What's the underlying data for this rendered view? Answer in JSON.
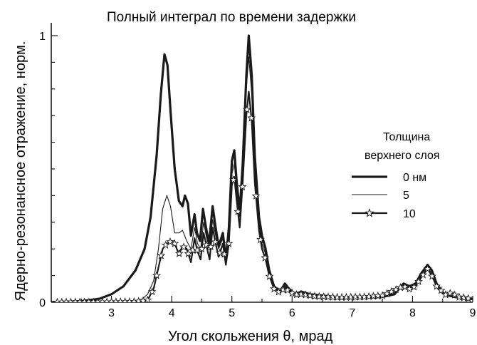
{
  "chart_data": {
    "type": "line",
    "title": "Полный интеграл по времени задержки",
    "xlabel": "Угол скольжения  θ,  мрад",
    "ylabel": "Ядерно-резонансное отражение,  норм.",
    "xlim": [
      2.0,
      9.0
    ],
    "ylim": [
      0.0,
      1.0
    ],
    "x_ticks": [
      "3",
      "4",
      "5",
      "6",
      "7",
      "8",
      "9"
    ],
    "y_ticks": [
      "0",
      "1"
    ],
    "grid": false,
    "legend": {
      "title_line1": "Толщина",
      "title_line2": "верхнего слоя",
      "placement": "right"
    },
    "series": [
      {
        "name": "0 нм",
        "style": "thick",
        "points": [
          [
            2.0,
            0.0
          ],
          [
            2.5,
            0.004
          ],
          [
            2.8,
            0.013
          ],
          [
            3.0,
            0.03
          ],
          [
            3.2,
            0.06
          ],
          [
            3.4,
            0.12
          ],
          [
            3.55,
            0.2
          ],
          [
            3.65,
            0.32
          ],
          [
            3.75,
            0.55
          ],
          [
            3.82,
            0.78
          ],
          [
            3.88,
            0.93
          ],
          [
            3.93,
            0.89
          ],
          [
            3.98,
            0.72
          ],
          [
            4.05,
            0.5
          ],
          [
            4.12,
            0.38
          ],
          [
            4.18,
            0.36
          ],
          [
            4.22,
            0.4
          ],
          [
            4.27,
            0.37
          ],
          [
            4.32,
            0.25
          ],
          [
            4.38,
            0.33
          ],
          [
            4.42,
            0.26
          ],
          [
            4.47,
            0.23
          ],
          [
            4.52,
            0.35
          ],
          [
            4.57,
            0.28
          ],
          [
            4.62,
            0.22
          ],
          [
            4.68,
            0.36
          ],
          [
            4.73,
            0.28
          ],
          [
            4.78,
            0.21
          ],
          [
            4.85,
            0.26
          ],
          [
            4.9,
            0.16
          ],
          [
            4.95,
            0.28
          ],
          [
            5.0,
            0.53
          ],
          [
            5.04,
            0.57
          ],
          [
            5.08,
            0.45
          ],
          [
            5.13,
            0.34
          ],
          [
            5.18,
            0.52
          ],
          [
            5.24,
            0.85
          ],
          [
            5.28,
            1.0
          ],
          [
            5.33,
            0.85
          ],
          [
            5.38,
            0.55
          ],
          [
            5.45,
            0.32
          ],
          [
            5.5,
            0.25
          ],
          [
            5.56,
            0.2
          ],
          [
            5.62,
            0.12
          ],
          [
            5.7,
            0.06
          ],
          [
            5.8,
            0.04
          ],
          [
            5.88,
            0.07
          ],
          [
            5.95,
            0.05
          ],
          [
            6.05,
            0.03
          ],
          [
            6.15,
            0.04
          ],
          [
            6.3,
            0.03
          ],
          [
            6.5,
            0.025
          ],
          [
            6.7,
            0.02
          ],
          [
            6.9,
            0.018
          ],
          [
            7.1,
            0.02
          ],
          [
            7.3,
            0.018
          ],
          [
            7.5,
            0.02
          ],
          [
            7.7,
            0.03
          ],
          [
            7.85,
            0.07
          ],
          [
            7.95,
            0.06
          ],
          [
            8.05,
            0.07
          ],
          [
            8.15,
            0.11
          ],
          [
            8.25,
            0.14
          ],
          [
            8.32,
            0.12
          ],
          [
            8.4,
            0.07
          ],
          [
            8.5,
            0.035
          ],
          [
            8.6,
            0.025
          ],
          [
            8.7,
            0.02
          ],
          [
            8.85,
            0.015
          ],
          [
            9.0,
            0.012
          ]
        ]
      },
      {
        "name": "5",
        "style": "thin",
        "points": [
          [
            2.0,
            0.0
          ],
          [
            3.3,
            0.002
          ],
          [
            3.5,
            0.01
          ],
          [
            3.6,
            0.03
          ],
          [
            3.7,
            0.08
          ],
          [
            3.78,
            0.2
          ],
          [
            3.85,
            0.35
          ],
          [
            3.92,
            0.4
          ],
          [
            3.98,
            0.36
          ],
          [
            4.05,
            0.26
          ],
          [
            4.12,
            0.26
          ],
          [
            4.18,
            0.27
          ],
          [
            4.25,
            0.23
          ],
          [
            4.32,
            0.2
          ],
          [
            4.38,
            0.28
          ],
          [
            4.43,
            0.22
          ],
          [
            4.48,
            0.2
          ],
          [
            4.53,
            0.3
          ],
          [
            4.58,
            0.24
          ],
          [
            4.63,
            0.2
          ],
          [
            4.68,
            0.31
          ],
          [
            4.73,
            0.25
          ],
          [
            4.78,
            0.2
          ],
          [
            4.85,
            0.24
          ],
          [
            4.9,
            0.16
          ],
          [
            4.95,
            0.25
          ],
          [
            5.0,
            0.48
          ],
          [
            5.04,
            0.52
          ],
          [
            5.08,
            0.42
          ],
          [
            5.13,
            0.32
          ],
          [
            5.18,
            0.5
          ],
          [
            5.24,
            0.8
          ],
          [
            5.28,
            0.92
          ],
          [
            5.33,
            0.78
          ],
          [
            5.38,
            0.5
          ],
          [
            5.45,
            0.3
          ],
          [
            5.5,
            0.22
          ],
          [
            5.56,
            0.18
          ],
          [
            5.62,
            0.11
          ],
          [
            5.7,
            0.055
          ],
          [
            5.8,
            0.04
          ],
          [
            5.88,
            0.06
          ],
          [
            5.95,
            0.045
          ],
          [
            6.05,
            0.03
          ],
          [
            6.15,
            0.035
          ],
          [
            6.4,
            0.025
          ],
          [
            6.8,
            0.02
          ],
          [
            7.2,
            0.02
          ],
          [
            7.6,
            0.025
          ],
          [
            7.85,
            0.065
          ],
          [
            7.95,
            0.055
          ],
          [
            8.05,
            0.065
          ],
          [
            8.15,
            0.1
          ],
          [
            8.25,
            0.13
          ],
          [
            8.32,
            0.11
          ],
          [
            8.4,
            0.065
          ],
          [
            8.55,
            0.03
          ],
          [
            8.75,
            0.02
          ],
          [
            9.0,
            0.012
          ]
        ]
      },
      {
        "name": "10",
        "style": "stars",
        "points": [
          [
            2.0,
            0.0
          ],
          [
            3.4,
            0.002
          ],
          [
            3.6,
            0.008
          ],
          [
            3.7,
            0.05
          ],
          [
            3.78,
            0.13
          ],
          [
            3.85,
            0.2
          ],
          [
            3.92,
            0.22
          ],
          [
            4.0,
            0.23
          ],
          [
            4.05,
            0.22
          ],
          [
            4.12,
            0.18
          ],
          [
            4.18,
            0.21
          ],
          [
            4.25,
            0.2
          ],
          [
            4.32,
            0.15
          ],
          [
            4.38,
            0.24
          ],
          [
            4.43,
            0.19
          ],
          [
            4.48,
            0.16
          ],
          [
            4.53,
            0.26
          ],
          [
            4.58,
            0.21
          ],
          [
            4.63,
            0.16
          ],
          [
            4.68,
            0.28
          ],
          [
            4.73,
            0.22
          ],
          [
            4.78,
            0.17
          ],
          [
            4.85,
            0.22
          ],
          [
            4.9,
            0.14
          ],
          [
            4.95,
            0.22
          ],
          [
            5.0,
            0.44
          ],
          [
            5.04,
            0.47
          ],
          [
            5.08,
            0.38
          ],
          [
            5.13,
            0.28
          ],
          [
            5.18,
            0.45
          ],
          [
            5.24,
            0.7
          ],
          [
            5.28,
            0.79
          ],
          [
            5.33,
            0.68
          ],
          [
            5.38,
            0.45
          ],
          [
            5.45,
            0.27
          ],
          [
            5.5,
            0.2
          ],
          [
            5.56,
            0.16
          ],
          [
            5.62,
            0.1
          ],
          [
            5.7,
            0.05
          ],
          [
            5.8,
            0.035
          ],
          [
            5.88,
            0.055
          ],
          [
            5.95,
            0.04
          ],
          [
            6.05,
            0.028
          ],
          [
            6.15,
            0.03
          ],
          [
            6.4,
            0.022
          ],
          [
            6.8,
            0.018
          ],
          [
            7.2,
            0.02
          ],
          [
            7.5,
            0.025
          ],
          [
            7.65,
            0.04
          ],
          [
            7.85,
            0.06
          ],
          [
            7.95,
            0.05
          ],
          [
            8.05,
            0.06
          ],
          [
            8.15,
            0.095
          ],
          [
            8.25,
            0.125
          ],
          [
            8.32,
            0.1
          ],
          [
            8.4,
            0.06
          ],
          [
            8.55,
            0.028
          ],
          [
            8.65,
            0.035
          ],
          [
            8.75,
            0.02
          ],
          [
            9.0,
            0.012
          ]
        ]
      }
    ]
  }
}
